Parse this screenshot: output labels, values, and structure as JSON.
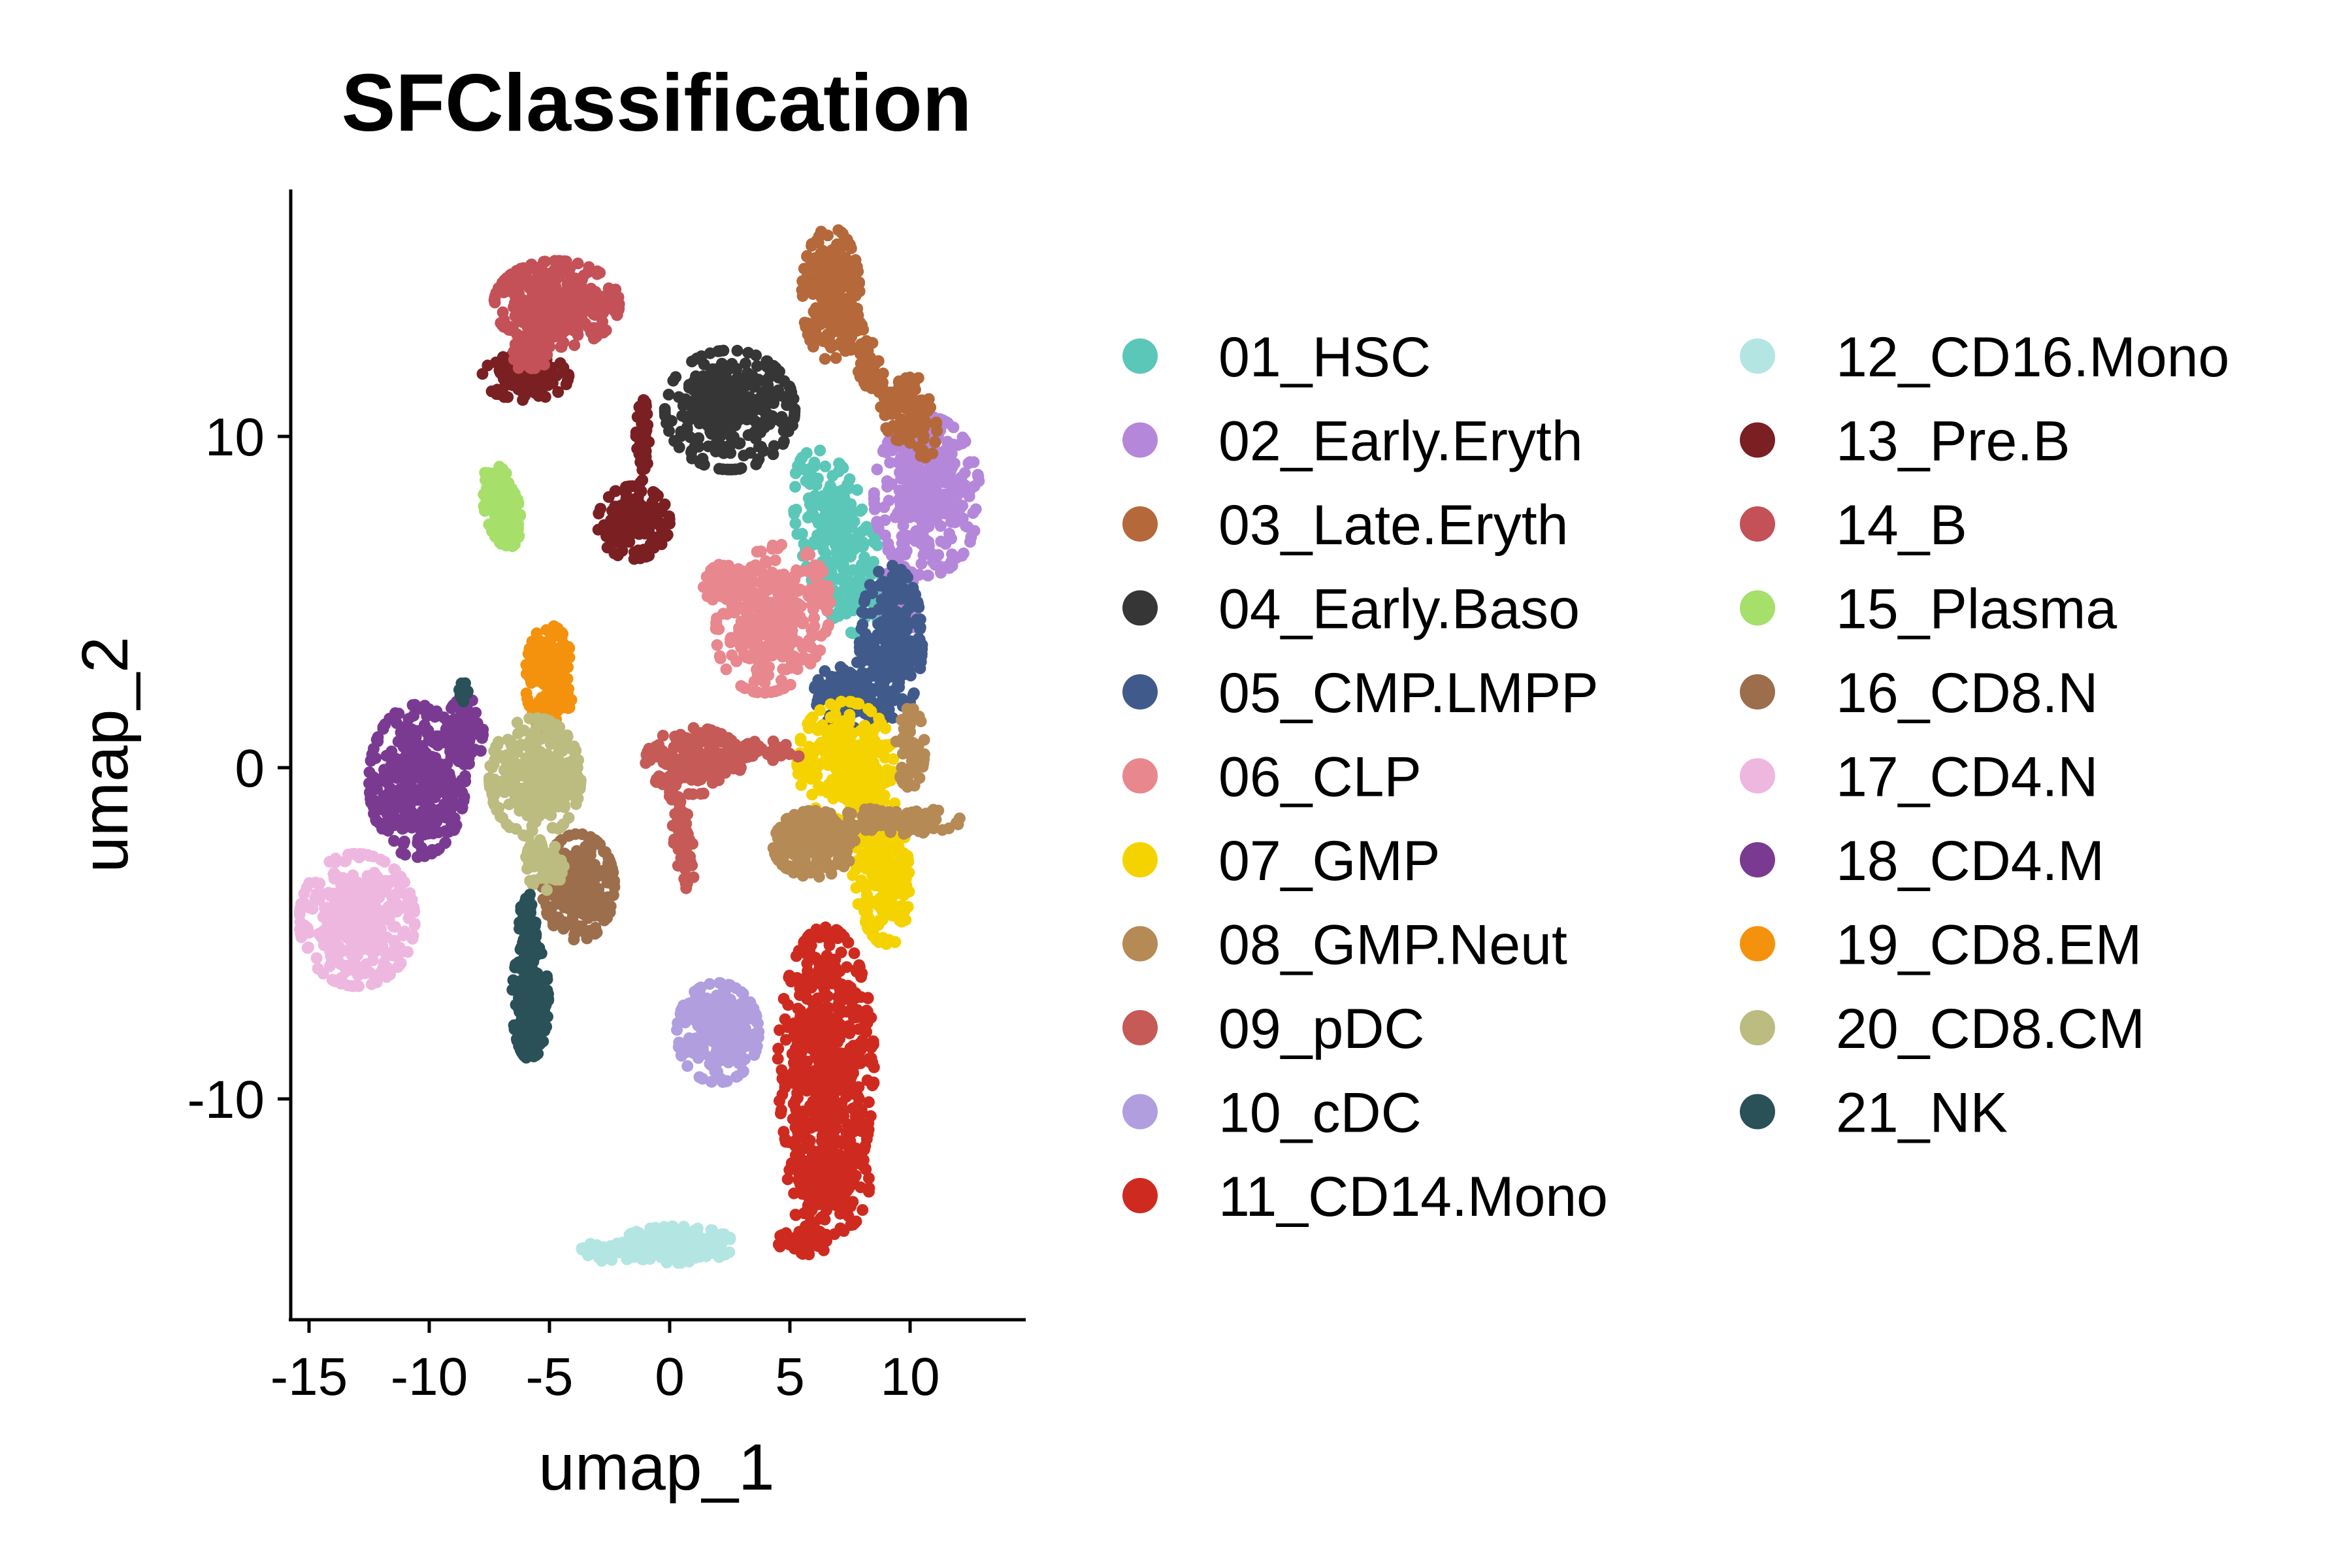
{
  "chart_data": {
    "type": "scatter",
    "title": "SFClassification",
    "xlabel": "umap_1",
    "ylabel": "umap_2",
    "xlim": [
      -16,
      15
    ],
    "ylim": [
      -16.5,
      17.5
    ],
    "x_ticks": [
      -15,
      -10,
      -5,
      0,
      5,
      10
    ],
    "x_tick_labels": [
      "-15",
      "-10",
      "-5",
      "0",
      "5",
      "10"
    ],
    "y_ticks": [
      -10,
      0,
      10
    ],
    "y_tick_labels": [
      "-10",
      "0",
      "10"
    ],
    "grid": false,
    "legend_placement": "right",
    "legend_columns": 2,
    "series": [
      {
        "name": "01_HSC",
        "color": "#5BC7B8",
        "center": [
          7,
          6.5
        ]
      },
      {
        "name": "02_Early.Eryth",
        "color": "#B587DA",
        "center": [
          11,
          8
        ]
      },
      {
        "name": "03_Late.Eryth",
        "color": "#B5683A",
        "center": [
          6.5,
          14.5
        ]
      },
      {
        "name": "04_Early.Baso",
        "color": "#363636",
        "center": [
          2.5,
          10.5
        ]
      },
      {
        "name": "05_CMP.LMPP",
        "color": "#415A8C",
        "center": [
          9,
          3
        ]
      },
      {
        "name": "06_CLP",
        "color": "#E8878E",
        "center": [
          4,
          4.5
        ]
      },
      {
        "name": "07_GMP",
        "color": "#F5D300",
        "center": [
          8,
          -1
        ]
      },
      {
        "name": "08_GMP.Neut",
        "color": "#B58A55",
        "center": [
          7,
          -2.5
        ]
      },
      {
        "name": "09_pDC",
        "color": "#C55A57",
        "center": [
          2,
          -1
        ]
      },
      {
        "name": "10_cDC",
        "color": "#B09EDF",
        "center": [
          2,
          -8
        ]
      },
      {
        "name": "11_CD14.Mono",
        "color": "#CF2A1F",
        "center": [
          6.5,
          -9
        ]
      },
      {
        "name": "12_CD16.Mono",
        "color": "#B3E6E2",
        "center": [
          0,
          -14.5
        ]
      },
      {
        "name": "13_Pre.B",
        "color": "#7A1F22",
        "center": [
          -1.5,
          7.5
        ]
      },
      {
        "name": "14_B",
        "color": "#C45158",
        "center": [
          -4.5,
          14
        ]
      },
      {
        "name": "15_Plasma",
        "color": "#A6DF6A",
        "center": [
          -7,
          8
        ]
      },
      {
        "name": "16_CD8.N",
        "color": "#9C6E4C",
        "center": [
          -3.5,
          -3.5
        ]
      },
      {
        "name": "17_CD4.N",
        "color": "#EEB7E0",
        "center": [
          -13,
          -4.5
        ]
      },
      {
        "name": "18_CD4.M",
        "color": "#7A3A92",
        "center": [
          -10,
          -0.5
        ]
      },
      {
        "name": "19_CD8.EM",
        "color": "#F4920E",
        "center": [
          -5,
          2.5
        ]
      },
      {
        "name": "20_CD8.CM",
        "color": "#BCBB80",
        "center": [
          -5.5,
          -0.5
        ]
      },
      {
        "name": "21_NK",
        "color": "#2A5058",
        "center": [
          -6,
          -6.5
        ]
      }
    ]
  }
}
